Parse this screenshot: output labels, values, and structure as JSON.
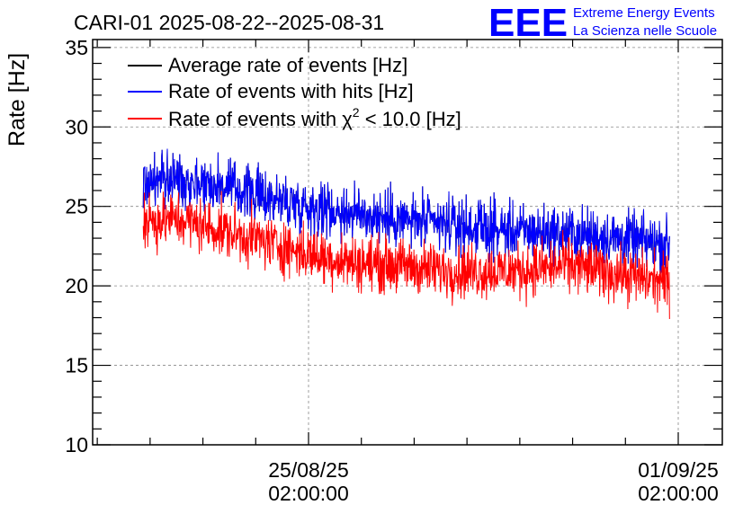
{
  "chart_data": {
    "type": "line",
    "title": "CARI-01 2025-08-22--2025-08-31",
    "ylabel": "Rate [Hz]",
    "xlabel": "",
    "ylim": [
      10,
      35.5
    ],
    "yticks": [
      10,
      15,
      20,
      25,
      30,
      35
    ],
    "ytick_labels": [
      "10",
      "15",
      "20",
      "25",
      "30",
      "35"
    ],
    "xlim_days": [
      0,
      12.2
    ],
    "xticks": [
      {
        "day": 5.0,
        "date": "25/08/25",
        "time": "02:00:00"
      },
      {
        "day": 13.5,
        "date": "01/09/25",
        "time": "02:00:00"
      }
    ],
    "grid": true,
    "legend_position": "top-left",
    "series": [
      {
        "name": "Average rate of events [Hz]",
        "color": "#000000",
        "x_days": [
          1.2,
          2,
          3,
          4,
          5,
          6,
          7,
          8,
          9,
          10,
          11,
          12,
          13.3
        ],
        "values": [
          26.5,
          26.8,
          26.3,
          25.6,
          25.0,
          24.6,
          24.2,
          23.9,
          23.6,
          23.4,
          23.3,
          23.0,
          22.6
        ]
      },
      {
        "name": "Rate of events with hits [Hz]",
        "color": "#0000ff",
        "x_days": [
          1.2,
          2,
          3,
          4,
          5,
          6,
          7,
          8,
          9,
          10,
          11,
          12,
          13.3
        ],
        "values": [
          26.5,
          26.8,
          26.3,
          25.6,
          25.0,
          24.6,
          24.2,
          23.9,
          23.6,
          23.4,
          23.3,
          23.0,
          22.6
        ]
      },
      {
        "name": "Rate of events with χ² < 10.0 [Hz]",
        "legend_prefix": "Rate of events with ",
        "legend_symbol": "χ",
        "legend_sup": "2",
        "legend_suffix": " < 10.0 [Hz]",
        "color": "#ff0000",
        "x_days": [
          1.2,
          2,
          3,
          4,
          5,
          6,
          7,
          8,
          9,
          10,
          11,
          12,
          13.3
        ],
        "values": [
          24.0,
          24.2,
          23.5,
          22.8,
          22.0,
          21.5,
          21.3,
          21.0,
          20.9,
          21.0,
          21.3,
          20.8,
          20.2
        ]
      }
    ]
  },
  "logo": {
    "mark": "EEE",
    "line1": "Extreme Energy Events",
    "line2": "La Scienza nelle Scuole",
    "color": "#0000ff"
  }
}
